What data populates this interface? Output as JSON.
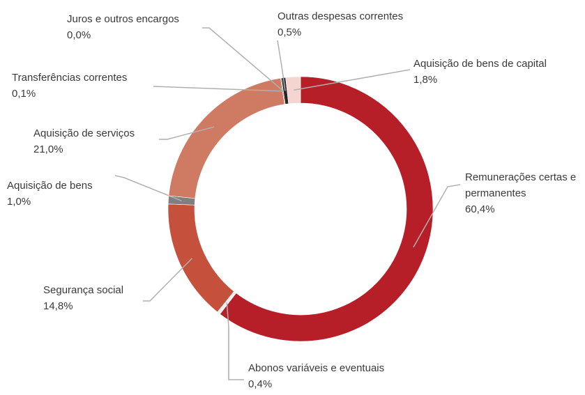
{
  "chart_data": {
    "type": "donut",
    "categories": [
      "Remunerações certas e permanentes",
      "Abonos variáveis e eventuais",
      "Segurança social",
      "Aquisição de bens",
      "Aquisição de serviços",
      "Transferências correntes",
      "Juros e outros encargos",
      "Outras despesas correntes",
      "Aquisição de bens de capital"
    ],
    "values": [
      60.4,
      0.4,
      14.8,
      1.0,
      21.0,
      0.1,
      0.0,
      0.5,
      1.8
    ],
    "value_labels": [
      "60,4%",
      "0,4%",
      "14,8%",
      "1,0%",
      "21,0%",
      "0,1%",
      "0,0%",
      "0,5%",
      "1,8%"
    ],
    "colors": [
      "#b71f28",
      "#eeeeee",
      "#c5513c",
      "#7f7f7f",
      "#cf7a62",
      "#595959",
      "#404040",
      "#262626",
      "#f4d5cf"
    ]
  }
}
